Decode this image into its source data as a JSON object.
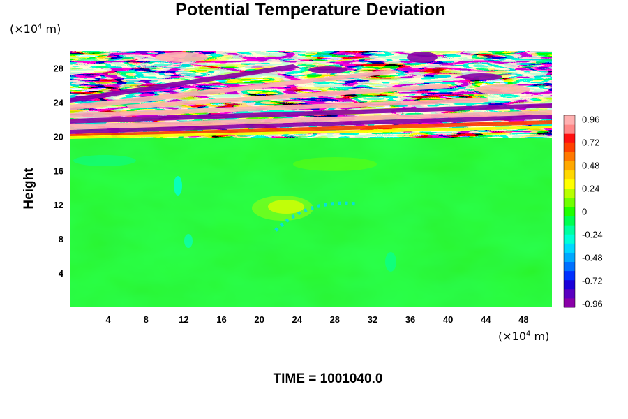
{
  "chart_data": {
    "type": "heatmap",
    "title": "Potential Temperature Deviation",
    "xlabel": "",
    "ylabel": "Height",
    "x_unit": "(×10⁴ m)",
    "y_unit": "(×10⁴ m)",
    "x_unit_parts": {
      "base": "(×10",
      "exp": "4",
      "tail": " m)"
    },
    "y_unit_parts": {
      "base": "(×10",
      "exp": "4",
      "tail": " m)"
    },
    "xlim": [
      0,
      51
    ],
    "ylim": [
      0,
      30
    ],
    "x_ticks": [
      4,
      8,
      12,
      16,
      20,
      24,
      28,
      32,
      36,
      40,
      44,
      48
    ],
    "y_ticks": [
      4,
      8,
      12,
      16,
      20,
      24,
      28
    ],
    "colorbar": {
      "min": -1.0,
      "max": 1.0,
      "ticks": [
        "0.96",
        "0.72",
        "0.48",
        "0.24",
        "0",
        "-0.24",
        "-0.48",
        "-0.72",
        "-0.96"
      ],
      "tick_values": [
        0.96,
        0.72,
        0.48,
        0.24,
        0,
        -0.24,
        -0.48,
        -0.72,
        -0.96
      ],
      "colors": [
        "#8a00a8",
        "#5a00c0",
        "#1a00d8",
        "#0030ff",
        "#0070ff",
        "#00a8ff",
        "#00d8ff",
        "#00ffd8",
        "#00ffa0",
        "#00ff50",
        "#20ff00",
        "#70ff00",
        "#b8ff00",
        "#ffff00",
        "#ffd800",
        "#ffa800",
        "#ff7800",
        "#ff4000",
        "#ff1010",
        "#ff8888",
        "#ffb0b0"
      ]
    },
    "regions": [
      {
        "name": "upper layer",
        "y_range": [
          20,
          30
        ],
        "pattern": "strong alternating bands of positive and negative deviation (approx ±0.96)"
      },
      {
        "name": "lower layer",
        "y_range": [
          0,
          20
        ],
        "pattern": "near-zero deviation with small features; slight positive around x≈24, y≈12"
      }
    ]
  },
  "time_label": "TIME = 1001040.0"
}
